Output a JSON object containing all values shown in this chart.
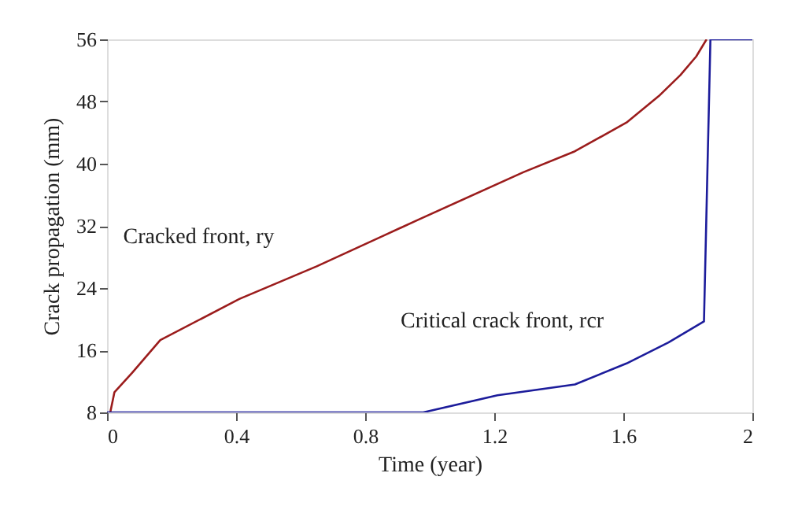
{
  "chart_data": {
    "type": "line",
    "xlabel": "Time (year)",
    "ylabel": "Crack propagation (mm)",
    "xlim": [
      0,
      2
    ],
    "xticks": [
      0,
      0.4,
      0.8,
      1.2,
      1.6,
      2
    ],
    "ylim": [
      8,
      56
    ],
    "yticks": [
      8,
      16,
      24,
      32,
      40,
      48,
      56
    ],
    "grid": false,
    "marker": "none",
    "line_style": "solid",
    "series": [
      {
        "name": "Cracked front, ry",
        "color": "#9b1c1c",
        "x": [
          0.01,
          0.023,
          0.078,
          0.165,
          0.41,
          0.65,
          0.86,
          0.965,
          1.29,
          1.45,
          1.61,
          1.71,
          1.777,
          1.826,
          1.858
        ],
        "values": [
          8,
          10.6,
          13.1,
          17.3,
          22.6,
          26.8,
          30.8,
          32.8,
          38.9,
          41.6,
          45.3,
          48.7,
          51.4,
          53.8,
          56
        ]
      },
      {
        "name": "Critical crack front, rcr",
        "color": "#1c1c9b",
        "x": [
          0,
          0.98,
          1.21,
          1.45,
          1.61,
          1.74,
          1.85,
          1.87,
          2
        ],
        "values": [
          8,
          8,
          10.2,
          11.6,
          14.3,
          17,
          19.7,
          56,
          56
        ]
      }
    ]
  }
}
